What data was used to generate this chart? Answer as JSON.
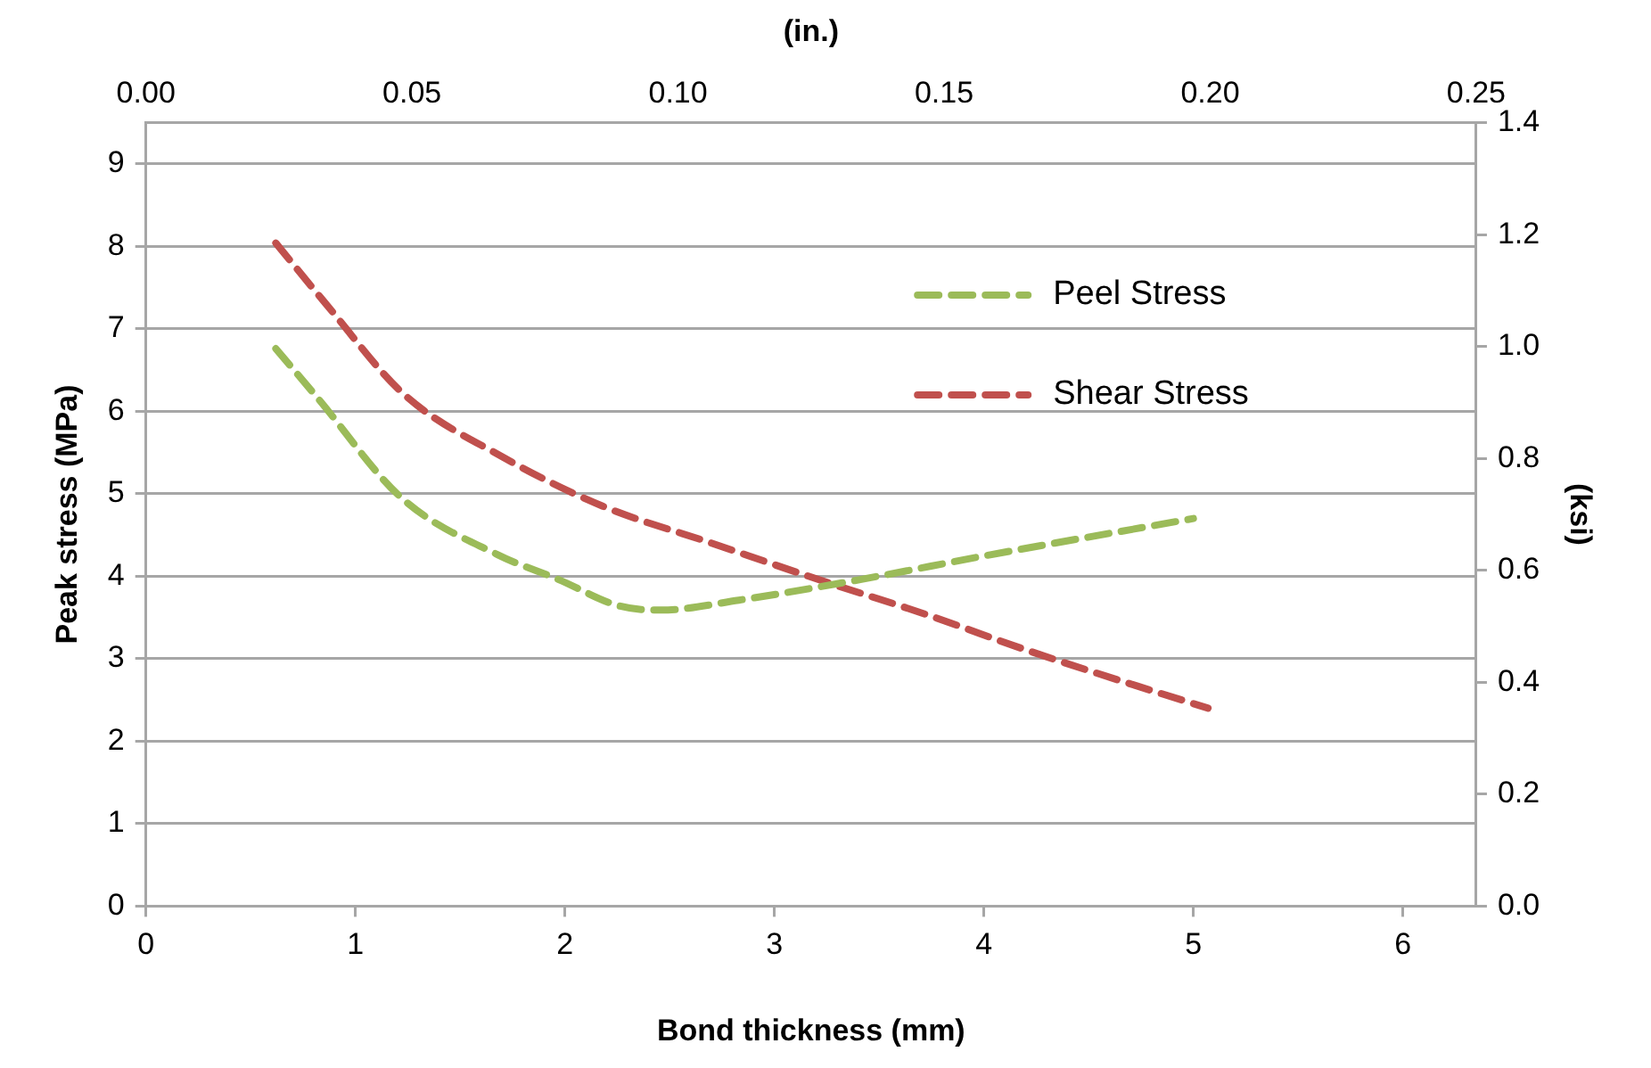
{
  "chart_data": {
    "type": "line",
    "xlabel": "Bond thickness (mm)",
    "ylabel": "Peak stress (MPa)",
    "y2label": "(ksi)",
    "x2label": "(in.)",
    "x": [
      0.62,
      0.82,
      1.22,
      1.68,
      1.97,
      2.26,
      2.46,
      2.83,
      3.41,
      4.03,
      5.0
    ],
    "series": [
      {
        "name": "Peel Stress",
        "color": "#9bbb59",
        "line_style": "dashed",
        "values": [
          6.76,
          6.16,
          4.95,
          4.26,
          3.96,
          3.64,
          3.59,
          3.71,
          3.96,
          4.26,
          4.7
        ]
      },
      {
        "name": "Shear Stress",
        "color": "#c0504d",
        "line_style": "dashed",
        "x": [
          0.62,
          0.86,
          1.23,
          1.7,
          2.18,
          2.69,
          3.21,
          3.72,
          4.22,
          4.73,
          5.07
        ],
        "values": [
          8.04,
          7.3,
          6.21,
          5.45,
          4.85,
          4.41,
          3.96,
          3.54,
          3.09,
          2.67,
          2.4
        ]
      }
    ],
    "xlim": [
      0,
      6.35
    ],
    "xticks": [
      0,
      1,
      2,
      3,
      4,
      5,
      6
    ],
    "x2lim": [
      0,
      0.25
    ],
    "x2ticks": [
      {
        "value": 0,
        "label": "0.00"
      },
      {
        "value": 0.05,
        "label": "0.05"
      },
      {
        "value": 0.1,
        "label": "0.10"
      },
      {
        "value": 0.15,
        "label": "0.15"
      },
      {
        "value": 0.2,
        "label": "0.20"
      },
      {
        "value": 0.25,
        "label": "0.25"
      }
    ],
    "ylim": [
      0,
      9.5
    ],
    "yticks": [
      0,
      1,
      2,
      3,
      4,
      5,
      6,
      7,
      8,
      9
    ],
    "y2lim": [
      0,
      1.4
    ],
    "y2ticks": [
      {
        "value": 0,
        "label": "0.0"
      },
      {
        "value": 0.2,
        "label": "0.2"
      },
      {
        "value": 0.4,
        "label": "0.4"
      },
      {
        "value": 0.6,
        "label": "0.6"
      },
      {
        "value": 0.8,
        "label": "0.8"
      },
      {
        "value": 1,
        "label": "1.0"
      },
      {
        "value": 1.2,
        "label": "1.2"
      },
      {
        "value": 1.4,
        "label": "1.4"
      }
    ],
    "grid": "y",
    "legend": "right",
    "marker": "none"
  }
}
